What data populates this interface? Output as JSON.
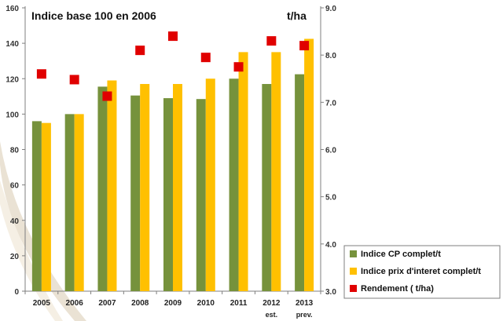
{
  "chart_data": {
    "type": "bar",
    "title": "Indice base 100 en 2006",
    "right_axis_unit": "t/ha",
    "categories": [
      {
        "label": "2005",
        "sub": ""
      },
      {
        "label": "2006",
        "sub": ""
      },
      {
        "label": "2007",
        "sub": ""
      },
      {
        "label": "2008",
        "sub": ""
      },
      {
        "label": "2009",
        "sub": ""
      },
      {
        "label": "2010",
        "sub": ""
      },
      {
        "label": "2011",
        "sub": ""
      },
      {
        "label": "2012",
        "sub": "est."
      },
      {
        "label": "2013",
        "sub": "prev."
      }
    ],
    "series": [
      {
        "name": "Indice CP complet/t",
        "type": "bar",
        "axis": "left",
        "color": "#76923c",
        "values": [
          96,
          100,
          115.5,
          110.5,
          109,
          108.5,
          120,
          117,
          122.5
        ]
      },
      {
        "name": "Indice prix d'interet complet/t",
        "type": "bar",
        "axis": "left",
        "color": "#ffc000",
        "values": [
          95,
          100,
          119,
          117,
          117,
          120,
          135,
          135,
          142.5
        ]
      },
      {
        "name": "Rendement  ( t/ha)",
        "type": "scatter",
        "axis": "right",
        "color": "#e00000",
        "values": [
          7.6,
          7.48,
          7.13,
          8.1,
          8.4,
          7.95,
          7.75,
          8.3,
          8.2
        ]
      }
    ],
    "left_axis": {
      "min": 0,
      "max": 160,
      "ticks": [
        "0",
        "20",
        "40",
        "60",
        "80",
        "100",
        "120",
        "140",
        "160"
      ]
    },
    "right_axis": {
      "min": 3.0,
      "max": 9.0,
      "ticks": [
        "3.0",
        "4.0",
        "5.0",
        "6.0",
        "7.0",
        "8.0",
        "9.0"
      ]
    },
    "grid": false,
    "legend_position": "bottom-right"
  }
}
